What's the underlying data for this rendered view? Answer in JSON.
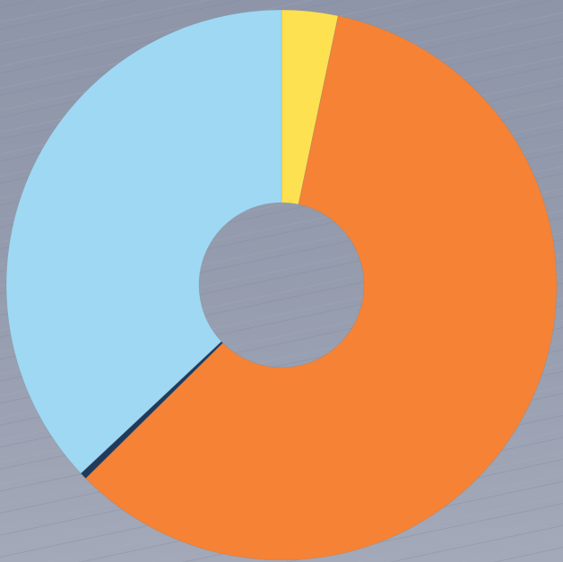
{
  "chart_data": {
    "type": "donut",
    "values": [
      3.3,
      59.3,
      0.4,
      37.0
    ],
    "colors": [
      "#fde150",
      "#f58235",
      "#1f3a5a",
      "#9fd8f2"
    ]
  }
}
